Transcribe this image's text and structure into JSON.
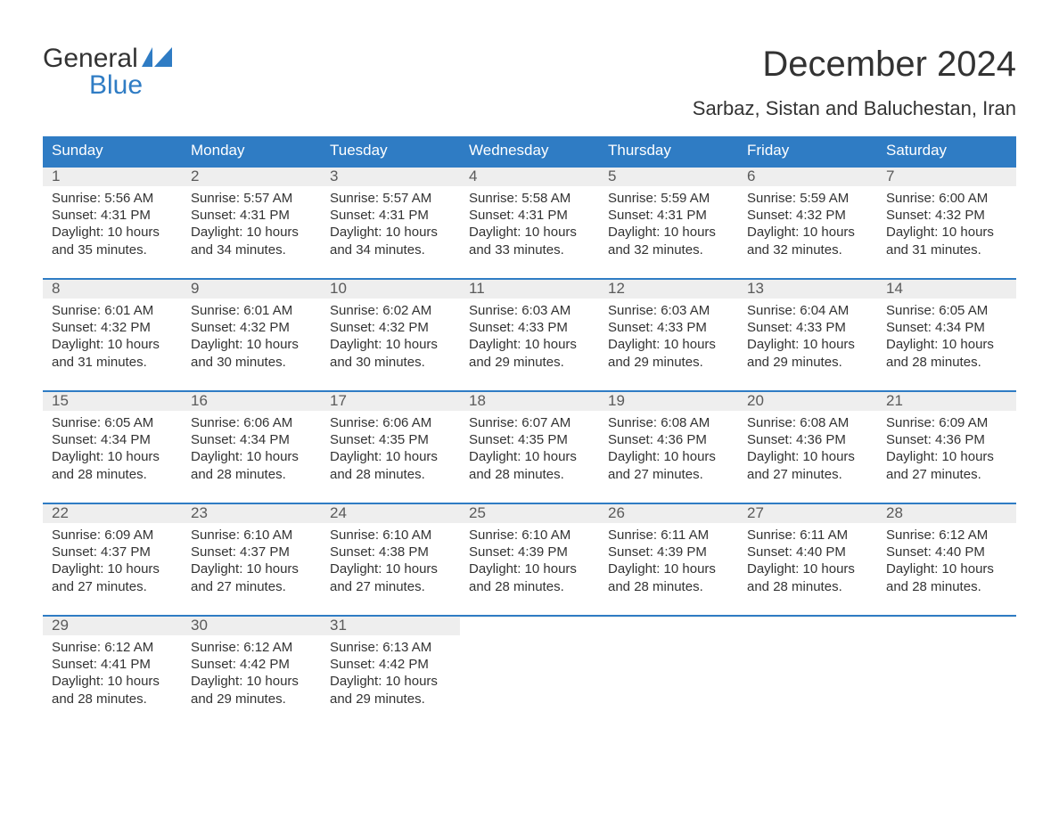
{
  "logo": {
    "top": "General",
    "bottom": "Blue",
    "flag_color": "#2f7cc4"
  },
  "title": "December 2024",
  "location": "Sarbaz, Sistan and Baluchestan, Iran",
  "colors": {
    "header_bg": "#2f7cc4",
    "header_text": "#ffffff",
    "daynum_bg": "#eeeeee",
    "daynum_text": "#5a5a5a",
    "body_text": "#333333",
    "week_border": "#2f7cc4",
    "page_bg": "#ffffff"
  },
  "typography": {
    "title_fontsize": 40,
    "location_fontsize": 22,
    "dow_fontsize": 17,
    "daynum_fontsize": 17,
    "body_fontsize": 15,
    "logo_fontsize": 30
  },
  "dow": [
    "Sunday",
    "Monday",
    "Tuesday",
    "Wednesday",
    "Thursday",
    "Friday",
    "Saturday"
  ],
  "weeks": [
    [
      {
        "n": "1",
        "sunrise": "Sunrise: 5:56 AM",
        "sunset": "Sunset: 4:31 PM",
        "day1": "Daylight: 10 hours",
        "day2": "and 35 minutes."
      },
      {
        "n": "2",
        "sunrise": "Sunrise: 5:57 AM",
        "sunset": "Sunset: 4:31 PM",
        "day1": "Daylight: 10 hours",
        "day2": "and 34 minutes."
      },
      {
        "n": "3",
        "sunrise": "Sunrise: 5:57 AM",
        "sunset": "Sunset: 4:31 PM",
        "day1": "Daylight: 10 hours",
        "day2": "and 34 minutes."
      },
      {
        "n": "4",
        "sunrise": "Sunrise: 5:58 AM",
        "sunset": "Sunset: 4:31 PM",
        "day1": "Daylight: 10 hours",
        "day2": "and 33 minutes."
      },
      {
        "n": "5",
        "sunrise": "Sunrise: 5:59 AM",
        "sunset": "Sunset: 4:31 PM",
        "day1": "Daylight: 10 hours",
        "day2": "and 32 minutes."
      },
      {
        "n": "6",
        "sunrise": "Sunrise: 5:59 AM",
        "sunset": "Sunset: 4:32 PM",
        "day1": "Daylight: 10 hours",
        "day2": "and 32 minutes."
      },
      {
        "n": "7",
        "sunrise": "Sunrise: 6:00 AM",
        "sunset": "Sunset: 4:32 PM",
        "day1": "Daylight: 10 hours",
        "day2": "and 31 minutes."
      }
    ],
    [
      {
        "n": "8",
        "sunrise": "Sunrise: 6:01 AM",
        "sunset": "Sunset: 4:32 PM",
        "day1": "Daylight: 10 hours",
        "day2": "and 31 minutes."
      },
      {
        "n": "9",
        "sunrise": "Sunrise: 6:01 AM",
        "sunset": "Sunset: 4:32 PM",
        "day1": "Daylight: 10 hours",
        "day2": "and 30 minutes."
      },
      {
        "n": "10",
        "sunrise": "Sunrise: 6:02 AM",
        "sunset": "Sunset: 4:32 PM",
        "day1": "Daylight: 10 hours",
        "day2": "and 30 minutes."
      },
      {
        "n": "11",
        "sunrise": "Sunrise: 6:03 AM",
        "sunset": "Sunset: 4:33 PM",
        "day1": "Daylight: 10 hours",
        "day2": "and 29 minutes."
      },
      {
        "n": "12",
        "sunrise": "Sunrise: 6:03 AM",
        "sunset": "Sunset: 4:33 PM",
        "day1": "Daylight: 10 hours",
        "day2": "and 29 minutes."
      },
      {
        "n": "13",
        "sunrise": "Sunrise: 6:04 AM",
        "sunset": "Sunset: 4:33 PM",
        "day1": "Daylight: 10 hours",
        "day2": "and 29 minutes."
      },
      {
        "n": "14",
        "sunrise": "Sunrise: 6:05 AM",
        "sunset": "Sunset: 4:34 PM",
        "day1": "Daylight: 10 hours",
        "day2": "and 28 minutes."
      }
    ],
    [
      {
        "n": "15",
        "sunrise": "Sunrise: 6:05 AM",
        "sunset": "Sunset: 4:34 PM",
        "day1": "Daylight: 10 hours",
        "day2": "and 28 minutes."
      },
      {
        "n": "16",
        "sunrise": "Sunrise: 6:06 AM",
        "sunset": "Sunset: 4:34 PM",
        "day1": "Daylight: 10 hours",
        "day2": "and 28 minutes."
      },
      {
        "n": "17",
        "sunrise": "Sunrise: 6:06 AM",
        "sunset": "Sunset: 4:35 PM",
        "day1": "Daylight: 10 hours",
        "day2": "and 28 minutes."
      },
      {
        "n": "18",
        "sunrise": "Sunrise: 6:07 AM",
        "sunset": "Sunset: 4:35 PM",
        "day1": "Daylight: 10 hours",
        "day2": "and 28 minutes."
      },
      {
        "n": "19",
        "sunrise": "Sunrise: 6:08 AM",
        "sunset": "Sunset: 4:36 PM",
        "day1": "Daylight: 10 hours",
        "day2": "and 27 minutes."
      },
      {
        "n": "20",
        "sunrise": "Sunrise: 6:08 AM",
        "sunset": "Sunset: 4:36 PM",
        "day1": "Daylight: 10 hours",
        "day2": "and 27 minutes."
      },
      {
        "n": "21",
        "sunrise": "Sunrise: 6:09 AM",
        "sunset": "Sunset: 4:36 PM",
        "day1": "Daylight: 10 hours",
        "day2": "and 27 minutes."
      }
    ],
    [
      {
        "n": "22",
        "sunrise": "Sunrise: 6:09 AM",
        "sunset": "Sunset: 4:37 PM",
        "day1": "Daylight: 10 hours",
        "day2": "and 27 minutes."
      },
      {
        "n": "23",
        "sunrise": "Sunrise: 6:10 AM",
        "sunset": "Sunset: 4:37 PM",
        "day1": "Daylight: 10 hours",
        "day2": "and 27 minutes."
      },
      {
        "n": "24",
        "sunrise": "Sunrise: 6:10 AM",
        "sunset": "Sunset: 4:38 PM",
        "day1": "Daylight: 10 hours",
        "day2": "and 27 minutes."
      },
      {
        "n": "25",
        "sunrise": "Sunrise: 6:10 AM",
        "sunset": "Sunset: 4:39 PM",
        "day1": "Daylight: 10 hours",
        "day2": "and 28 minutes."
      },
      {
        "n": "26",
        "sunrise": "Sunrise: 6:11 AM",
        "sunset": "Sunset: 4:39 PM",
        "day1": "Daylight: 10 hours",
        "day2": "and 28 minutes."
      },
      {
        "n": "27",
        "sunrise": "Sunrise: 6:11 AM",
        "sunset": "Sunset: 4:40 PM",
        "day1": "Daylight: 10 hours",
        "day2": "and 28 minutes."
      },
      {
        "n": "28",
        "sunrise": "Sunrise: 6:12 AM",
        "sunset": "Sunset: 4:40 PM",
        "day1": "Daylight: 10 hours",
        "day2": "and 28 minutes."
      }
    ],
    [
      {
        "n": "29",
        "sunrise": "Sunrise: 6:12 AM",
        "sunset": "Sunset: 4:41 PM",
        "day1": "Daylight: 10 hours",
        "day2": "and 28 minutes."
      },
      {
        "n": "30",
        "sunrise": "Sunrise: 6:12 AM",
        "sunset": "Sunset: 4:42 PM",
        "day1": "Daylight: 10 hours",
        "day2": "and 29 minutes."
      },
      {
        "n": "31",
        "sunrise": "Sunrise: 6:13 AM",
        "sunset": "Sunset: 4:42 PM",
        "day1": "Daylight: 10 hours",
        "day2": "and 29 minutes."
      },
      {
        "empty": true
      },
      {
        "empty": true
      },
      {
        "empty": true
      },
      {
        "empty": true
      }
    ]
  ]
}
